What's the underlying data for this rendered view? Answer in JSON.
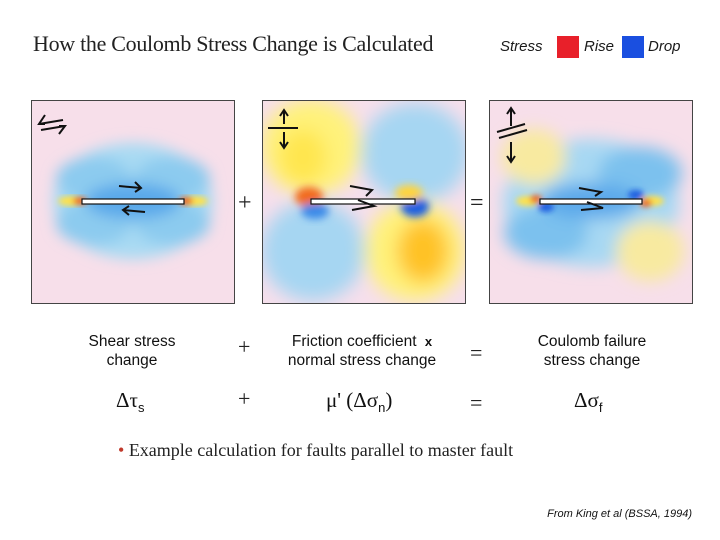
{
  "title": "How the Coulomb Stress Change is Calculated",
  "legend": {
    "stress_label": "Stress",
    "rise_label": "Rise",
    "drop_label": "Drop",
    "rise_color": "#e8202a",
    "drop_color": "#1a4fe0"
  },
  "panels": {
    "shear": {
      "icon": "left-lateral-shear-arrows-icon"
    },
    "normal": {
      "icon": "normal-stress-arrows-icon"
    },
    "coulomb": {
      "icon": "combined-stress-arrows-icon"
    }
  },
  "operators": {
    "plus": "+",
    "equals": "="
  },
  "labels": {
    "shear_line1": "Shear stress",
    "shear_line2": "change",
    "friction_line1": "Friction coefficient",
    "friction_x": "x",
    "friction_line2": "normal stress change",
    "coulomb_line1": "Coulomb failure",
    "coulomb_line2": "stress change"
  },
  "equation": {
    "delta_tau": "Δτ",
    "tau_sub": "s",
    "mu_prime": "μ' (Δσ",
    "n_sub": "n",
    "close_paren": ")",
    "delta_sigma": "Δσ",
    "f_sub": "f"
  },
  "bullet": {
    "dot": "•",
    "text": "Example calculation for faults parallel to master fault"
  },
  "source": "From King et al (BSSA, 1994)"
}
